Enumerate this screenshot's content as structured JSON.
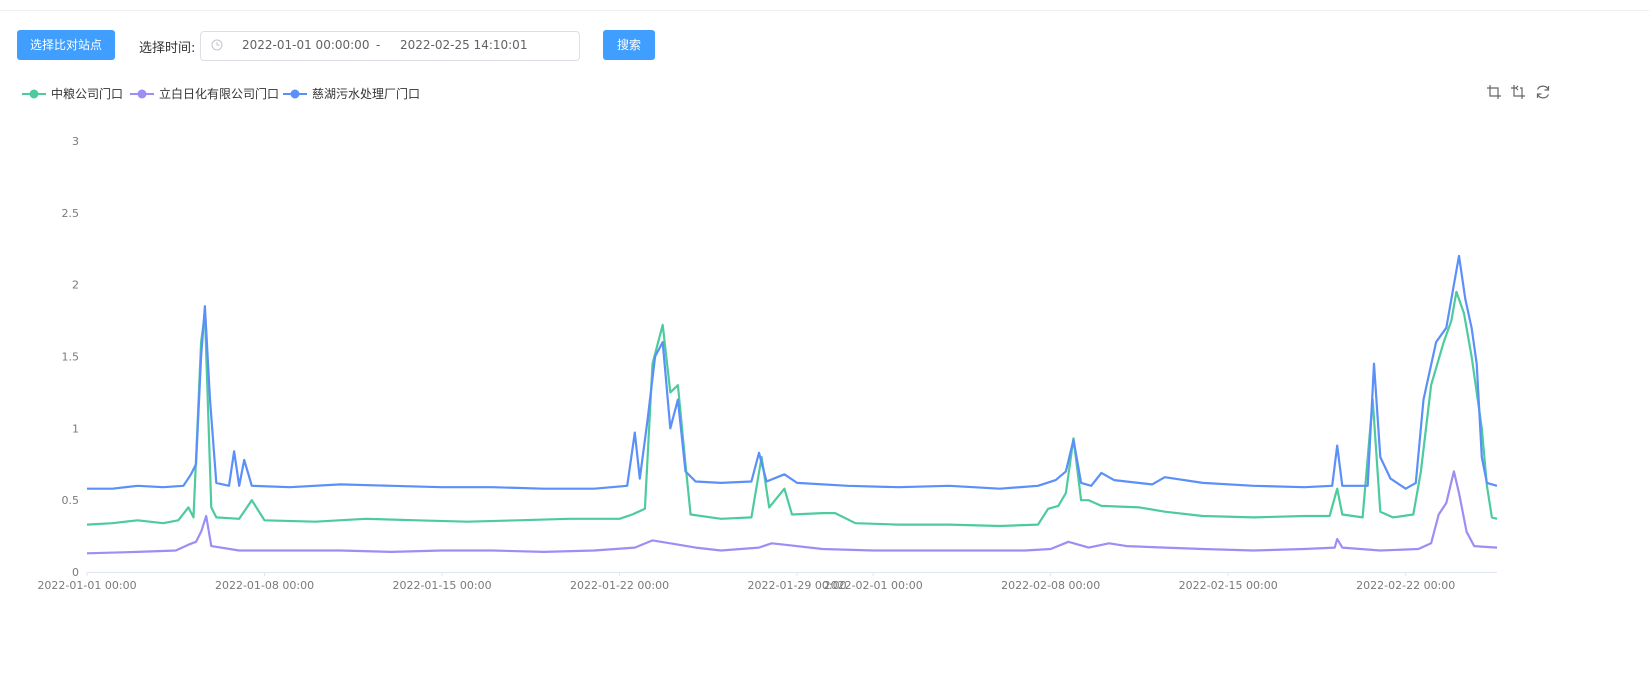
{
  "toolbar": {
    "compare_button": "选择比对站点",
    "time_label": "选择时间:",
    "start": "2022-01-01 00:00:00",
    "separator": "-",
    "end": "2022-02-25 14:10:01",
    "search_button": "搜索"
  },
  "colors": {
    "accent": "#409eff",
    "series": [
      "#4ecb9c",
      "#9b8ef4",
      "#5b8ff9"
    ]
  },
  "chart_data": {
    "type": "line",
    "ylim": [
      0,
      3
    ],
    "y_ticks": [
      "0",
      "0.5",
      "1",
      "1.5",
      "2",
      "2.5",
      "3"
    ],
    "x_ticks": [
      {
        "label": "2022-01-01 00:00",
        "day": 0
      },
      {
        "label": "2022-01-08 00:00",
        "day": 7
      },
      {
        "label": "2022-01-15 00:00",
        "day": 14
      },
      {
        "label": "2022-01-22 00:00",
        "day": 21
      },
      {
        "label": "2022-01-29 00:00",
        "day": 28
      },
      {
        "label": "2022-02-01 00:00",
        "day": 31
      },
      {
        "label": "2022-02-08 00:00",
        "day": 38
      },
      {
        "label": "2022-02-15 00:00",
        "day": 45
      },
      {
        "label": "2022-02-22 00:00",
        "day": 52
      }
    ],
    "x_range_days": [
      0,
      55.6
    ],
    "legend": "top-left",
    "series": [
      {
        "name": "中粮公司门口",
        "color": "#4ecb9c",
        "points": [
          [
            0,
            0.33
          ],
          [
            1,
            0.34
          ],
          [
            2,
            0.36
          ],
          [
            3,
            0.34
          ],
          [
            3.6,
            0.36
          ],
          [
            4,
            0.45
          ],
          [
            4.2,
            0.38
          ],
          [
            4.5,
            1.6
          ],
          [
            4.65,
            1.8
          ],
          [
            4.9,
            0.45
          ],
          [
            5.1,
            0.38
          ],
          [
            6,
            0.37
          ],
          [
            6.5,
            0.5
          ],
          [
            7,
            0.36
          ],
          [
            9,
            0.35
          ],
          [
            11,
            0.37
          ],
          [
            13,
            0.36
          ],
          [
            15,
            0.35
          ],
          [
            17,
            0.36
          ],
          [
            19,
            0.37
          ],
          [
            21,
            0.37
          ],
          [
            21.5,
            0.4
          ],
          [
            22,
            0.44
          ],
          [
            22.3,
            1.45
          ],
          [
            22.7,
            1.72
          ],
          [
            23,
            1.25
          ],
          [
            23.3,
            1.3
          ],
          [
            23.6,
            0.75
          ],
          [
            23.8,
            0.4
          ],
          [
            25,
            0.37
          ],
          [
            26.2,
            0.38
          ],
          [
            26.6,
            0.8
          ],
          [
            26.9,
            0.45
          ],
          [
            27.5,
            0.58
          ],
          [
            27.8,
            0.4
          ],
          [
            29,
            0.41
          ],
          [
            29.5,
            0.41
          ],
          [
            30.3,
            0.34
          ],
          [
            32,
            0.33
          ],
          [
            34,
            0.33
          ],
          [
            36,
            0.32
          ],
          [
            37.5,
            0.33
          ],
          [
            37.9,
            0.44
          ],
          [
            38.3,
            0.46
          ],
          [
            38.6,
            0.55
          ],
          [
            38.9,
            0.93
          ],
          [
            39.2,
            0.5
          ],
          [
            39.5,
            0.5
          ],
          [
            40,
            0.46
          ],
          [
            41.5,
            0.45
          ],
          [
            42.5,
            0.42
          ],
          [
            44,
            0.39
          ],
          [
            46,
            0.38
          ],
          [
            48,
            0.39
          ],
          [
            49,
            0.39
          ],
          [
            49.3,
            0.58
          ],
          [
            49.5,
            0.4
          ],
          [
            50.3,
            0.38
          ],
          [
            50.7,
            1.2
          ],
          [
            51,
            0.42
          ],
          [
            51.5,
            0.38
          ],
          [
            52.3,
            0.4
          ],
          [
            52.6,
            0.7
          ],
          [
            53,
            1.3
          ],
          [
            53.5,
            1.6
          ],
          [
            53.8,
            1.75
          ],
          [
            54,
            1.95
          ],
          [
            54.3,
            1.8
          ],
          [
            54.6,
            1.5
          ],
          [
            55,
            1.0
          ],
          [
            55.2,
            0.6
          ],
          [
            55.4,
            0.38
          ],
          [
            55.6,
            0.37
          ]
        ]
      },
      {
        "name": "立白日化有限公司门口",
        "color": "#9b8ef4",
        "points": [
          [
            0,
            0.13
          ],
          [
            2,
            0.14
          ],
          [
            3.5,
            0.15
          ],
          [
            4,
            0.19
          ],
          [
            4.3,
            0.21
          ],
          [
            4.5,
            0.28
          ],
          [
            4.7,
            0.39
          ],
          [
            4.9,
            0.18
          ],
          [
            6,
            0.15
          ],
          [
            8,
            0.15
          ],
          [
            10,
            0.15
          ],
          [
            12,
            0.14
          ],
          [
            14,
            0.15
          ],
          [
            16,
            0.15
          ],
          [
            18,
            0.14
          ],
          [
            20,
            0.15
          ],
          [
            21.6,
            0.17
          ],
          [
            22.3,
            0.22
          ],
          [
            23,
            0.2
          ],
          [
            24,
            0.17
          ],
          [
            25,
            0.15
          ],
          [
            26.5,
            0.17
          ],
          [
            27,
            0.2
          ],
          [
            27.5,
            0.19
          ],
          [
            29,
            0.16
          ],
          [
            31,
            0.15
          ],
          [
            33,
            0.15
          ],
          [
            35,
            0.15
          ],
          [
            37,
            0.15
          ],
          [
            38,
            0.16
          ],
          [
            38.7,
            0.21
          ],
          [
            39.5,
            0.17
          ],
          [
            40.3,
            0.2
          ],
          [
            41,
            0.18
          ],
          [
            42.5,
            0.17
          ],
          [
            44,
            0.16
          ],
          [
            46,
            0.15
          ],
          [
            48,
            0.16
          ],
          [
            49.2,
            0.17
          ],
          [
            49.3,
            0.23
          ],
          [
            49.5,
            0.17
          ],
          [
            51,
            0.15
          ],
          [
            52.5,
            0.16
          ],
          [
            53,
            0.2
          ],
          [
            53.3,
            0.4
          ],
          [
            53.6,
            0.48
          ],
          [
            53.9,
            0.7
          ],
          [
            54.1,
            0.55
          ],
          [
            54.4,
            0.28
          ],
          [
            54.7,
            0.18
          ],
          [
            55.6,
            0.17
          ]
        ]
      },
      {
        "name": "慈湖污水处理厂门口",
        "color": "#5b8ff9",
        "points": [
          [
            0,
            0.58
          ],
          [
            1,
            0.58
          ],
          [
            2,
            0.6
          ],
          [
            3,
            0.59
          ],
          [
            3.8,
            0.6
          ],
          [
            4.1,
            0.68
          ],
          [
            4.3,
            0.75
          ],
          [
            4.5,
            1.5
          ],
          [
            4.65,
            1.85
          ],
          [
            4.85,
            1.2
          ],
          [
            5.1,
            0.62
          ],
          [
            5.6,
            0.6
          ],
          [
            5.8,
            0.84
          ],
          [
            6.0,
            0.6
          ],
          [
            6.2,
            0.78
          ],
          [
            6.5,
            0.6
          ],
          [
            8,
            0.59
          ],
          [
            10,
            0.61
          ],
          [
            12,
            0.6
          ],
          [
            14,
            0.59
          ],
          [
            16,
            0.59
          ],
          [
            18,
            0.58
          ],
          [
            20,
            0.58
          ],
          [
            21.3,
            0.6
          ],
          [
            21.6,
            0.97
          ],
          [
            21.8,
            0.65
          ],
          [
            22.1,
            1.05
          ],
          [
            22.4,
            1.5
          ],
          [
            22.7,
            1.6
          ],
          [
            23.0,
            1.0
          ],
          [
            23.3,
            1.2
          ],
          [
            23.6,
            0.7
          ],
          [
            24,
            0.63
          ],
          [
            25,
            0.62
          ],
          [
            26.2,
            0.63
          ],
          [
            26.5,
            0.83
          ],
          [
            26.8,
            0.63
          ],
          [
            27.5,
            0.68
          ],
          [
            28,
            0.62
          ],
          [
            30,
            0.6
          ],
          [
            32,
            0.59
          ],
          [
            34,
            0.6
          ],
          [
            36,
            0.58
          ],
          [
            37.5,
            0.6
          ],
          [
            38.2,
            0.64
          ],
          [
            38.6,
            0.7
          ],
          [
            38.9,
            0.92
          ],
          [
            39.2,
            0.62
          ],
          [
            39.6,
            0.6
          ],
          [
            40,
            0.69
          ],
          [
            40.5,
            0.64
          ],
          [
            42,
            0.61
          ],
          [
            42.5,
            0.66
          ],
          [
            44,
            0.62
          ],
          [
            46,
            0.6
          ],
          [
            48,
            0.59
          ],
          [
            49.1,
            0.6
          ],
          [
            49.3,
            0.88
          ],
          [
            49.5,
            0.6
          ],
          [
            50.5,
            0.6
          ],
          [
            50.75,
            1.45
          ],
          [
            51,
            0.8
          ],
          [
            51.4,
            0.65
          ],
          [
            52,
            0.58
          ],
          [
            52.4,
            0.62
          ],
          [
            52.7,
            1.2
          ],
          [
            53.2,
            1.6
          ],
          [
            53.6,
            1.7
          ],
          [
            53.9,
            2.0
          ],
          [
            54.1,
            2.2
          ],
          [
            54.35,
            1.9
          ],
          [
            54.6,
            1.7
          ],
          [
            54.8,
            1.45
          ],
          [
            55.0,
            0.8
          ],
          [
            55.2,
            0.62
          ],
          [
            55.6,
            0.6
          ]
        ]
      }
    ]
  }
}
